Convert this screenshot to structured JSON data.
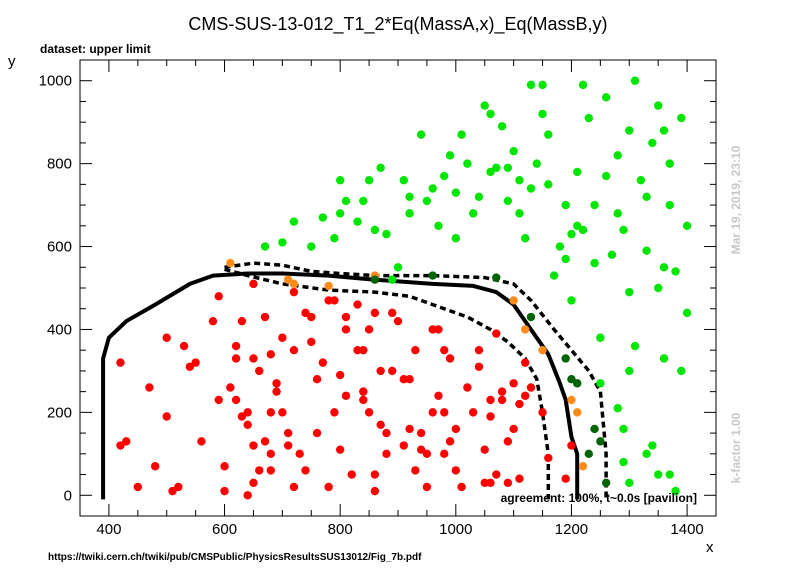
{
  "chart_data": {
    "type": "scatter",
    "title": "CMS-SUS-13-012_T1_2*Eq(MassA,x)_Eq(MassB,y)",
    "subtitle": "dataset: upper limit",
    "xlabel": "x",
    "ylabel": "y",
    "xlim": [
      350,
      1450
    ],
    "ylim": [
      -50,
      1050
    ],
    "xticks": [
      400,
      600,
      800,
      1000,
      1200,
      1400
    ],
    "yticks": [
      0,
      200,
      400,
      600,
      800,
      1000
    ],
    "colors": {
      "excluded": "#ff0000",
      "allowed": "#00e600",
      "borderline": "#ff8c1a",
      "darkgreen": "#006400",
      "text_grey": "#c8c8c8"
    },
    "series": [
      {
        "color_key": "excluded",
        "points": [
          [
            420,
            320
          ],
          [
            420,
            120
          ],
          [
            430,
            130
          ],
          [
            450,
            20
          ],
          [
            470,
            260
          ],
          [
            480,
            70
          ],
          [
            500,
            380
          ],
          [
            510,
            10
          ],
          [
            500,
            190
          ],
          [
            520,
            20
          ],
          [
            530,
            360
          ],
          [
            540,
            310
          ],
          [
            550,
            320
          ],
          [
            560,
            130
          ],
          [
            580,
            420
          ],
          [
            590,
            480
          ],
          [
            590,
            230
          ],
          [
            600,
            10
          ],
          [
            600,
            70
          ],
          [
            610,
            260
          ],
          [
            620,
            330
          ],
          [
            620,
            360
          ],
          [
            620,
            230
          ],
          [
            630,
            190
          ],
          [
            630,
            420
          ],
          [
            640,
            200
          ],
          [
            640,
            170
          ],
          [
            640,
            0
          ],
          [
            650,
            510
          ],
          [
            650,
            330
          ],
          [
            650,
            120
          ],
          [
            650,
            30
          ],
          [
            660,
            60
          ],
          [
            660,
            300
          ],
          [
            670,
            430
          ],
          [
            670,
            130
          ],
          [
            680,
            100
          ],
          [
            680,
            60
          ],
          [
            680,
            200
          ],
          [
            680,
            340
          ],
          [
            690,
            270
          ],
          [
            690,
            250
          ],
          [
            700,
            380
          ],
          [
            700,
            200
          ],
          [
            710,
            150
          ],
          [
            710,
            120
          ],
          [
            720,
            490
          ],
          [
            720,
            350
          ],
          [
            720,
            20
          ],
          [
            730,
            100
          ],
          [
            740,
            60
          ],
          [
            740,
            440
          ],
          [
            750,
            370
          ],
          [
            750,
            430
          ],
          [
            760,
            280
          ],
          [
            760,
            150
          ],
          [
            770,
            320
          ],
          [
            780,
            20
          ],
          [
            780,
            470
          ],
          [
            790,
            470
          ],
          [
            790,
            200
          ],
          [
            800,
            290
          ],
          [
            800,
            110
          ],
          [
            810,
            240
          ],
          [
            810,
            430
          ],
          [
            810,
            400
          ],
          [
            820,
            50
          ],
          [
            830,
            350
          ],
          [
            830,
            460
          ],
          [
            840,
            350
          ],
          [
            840,
            250
          ],
          [
            840,
            230
          ],
          [
            850,
            400
          ],
          [
            850,
            200
          ],
          [
            860,
            440
          ],
          [
            860,
            50
          ],
          [
            860,
            10
          ],
          [
            870,
            300
          ],
          [
            870,
            170
          ],
          [
            880,
            150
          ],
          [
            880,
            100
          ],
          [
            890,
            440
          ],
          [
            890,
            300
          ],
          [
            900,
            420
          ],
          [
            910,
            120
          ],
          [
            910,
            280
          ],
          [
            920,
            160
          ],
          [
            920,
            280
          ],
          [
            930,
            350
          ],
          [
            930,
            60
          ],
          [
            940,
            110
          ],
          [
            940,
            150
          ],
          [
            950,
            100
          ],
          [
            950,
            20
          ],
          [
            960,
            200
          ],
          [
            960,
            400
          ],
          [
            970,
            400
          ],
          [
            970,
            240
          ],
          [
            980,
            350
          ],
          [
            980,
            200
          ],
          [
            980,
            100
          ],
          [
            990,
            130
          ],
          [
            990,
            330
          ],
          [
            1000,
            160
          ],
          [
            1000,
            60
          ],
          [
            1010,
            20
          ],
          [
            1020,
            260
          ],
          [
            1030,
            200
          ],
          [
            1040,
            350
          ],
          [
            1040,
            310
          ],
          [
            1050,
            110
          ],
          [
            1050,
            30
          ],
          [
            1060,
            230
          ],
          [
            1060,
            190
          ],
          [
            1060,
            30
          ],
          [
            1070,
            50
          ],
          [
            1070,
            390
          ],
          [
            1080,
            250
          ],
          [
            1080,
            230
          ],
          [
            1090,
            30
          ],
          [
            1090,
            130
          ],
          [
            1100,
            270
          ],
          [
            1100,
            160
          ],
          [
            1110,
            220
          ],
          [
            1110,
            40
          ],
          [
            1120,
            320
          ],
          [
            1120,
            240
          ],
          [
            1130,
            260
          ],
          [
            1150,
            200
          ],
          [
            1160,
            90
          ],
          [
            1190,
            40
          ],
          [
            1200,
            120
          ]
        ],
        "color": "#ff0000"
      },
      {
        "color_key": "borderline",
        "points": [
          [
            610,
            560
          ],
          [
            710,
            520
          ],
          [
            720,
            510
          ],
          [
            780,
            505
          ],
          [
            860,
            530
          ],
          [
            1100,
            470
          ],
          [
            1120,
            400
          ],
          [
            1150,
            350
          ],
          [
            1200,
            230
          ],
          [
            1210,
            200
          ],
          [
            1220,
            70
          ]
        ],
        "color": "#ff8c1a"
      },
      {
        "color_key": "darkgreen",
        "points": [
          [
            860,
            520
          ],
          [
            960,
            530
          ],
          [
            1070,
            525
          ],
          [
            1130,
            430
          ],
          [
            1190,
            330
          ],
          [
            1200,
            280
          ],
          [
            1210,
            270
          ],
          [
            1230,
            100
          ],
          [
            1240,
            160
          ],
          [
            1250,
            130
          ],
          [
            1260,
            30
          ]
        ],
        "color": "#006400"
      },
      {
        "color_key": "allowed",
        "points": [
          [
            670,
            600
          ],
          [
            700,
            610
          ],
          [
            720,
            660
          ],
          [
            750,
            600
          ],
          [
            770,
            670
          ],
          [
            790,
            620
          ],
          [
            800,
            760
          ],
          [
            800,
            680
          ],
          [
            810,
            710
          ],
          [
            830,
            660
          ],
          [
            840,
            710
          ],
          [
            850,
            760
          ],
          [
            860,
            640
          ],
          [
            870,
            790
          ],
          [
            880,
            630
          ],
          [
            890,
            520
          ],
          [
            900,
            550
          ],
          [
            910,
            760
          ],
          [
            920,
            720
          ],
          [
            920,
            680
          ],
          [
            940,
            870
          ],
          [
            950,
            710
          ],
          [
            960,
            740
          ],
          [
            970,
            650
          ],
          [
            980,
            770
          ],
          [
            990,
            820
          ],
          [
            1000,
            730
          ],
          [
            1000,
            620
          ],
          [
            1010,
            870
          ],
          [
            1020,
            800
          ],
          [
            1030,
            680
          ],
          [
            1040,
            720
          ],
          [
            1050,
            940
          ],
          [
            1060,
            920
          ],
          [
            1060,
            780
          ],
          [
            1070,
            790
          ],
          [
            1080,
            890
          ],
          [
            1090,
            710
          ],
          [
            1090,
            790
          ],
          [
            1100,
            830
          ],
          [
            1110,
            760
          ],
          [
            1110,
            680
          ],
          [
            1120,
            620
          ],
          [
            1130,
            990
          ],
          [
            1130,
            740
          ],
          [
            1140,
            800
          ],
          [
            1150,
            920
          ],
          [
            1150,
            990
          ],
          [
            1160,
            870
          ],
          [
            1160,
            750
          ],
          [
            1170,
            530
          ],
          [
            1180,
            600
          ],
          [
            1190,
            700
          ],
          [
            1190,
            570
          ],
          [
            1200,
            630
          ],
          [
            1200,
            470
          ],
          [
            1210,
            780
          ],
          [
            1210,
            650
          ],
          [
            1220,
            990
          ],
          [
            1220,
            640
          ],
          [
            1230,
            910
          ],
          [
            1240,
            700
          ],
          [
            1240,
            560
          ],
          [
            1250,
            380
          ],
          [
            1250,
            270
          ],
          [
            1260,
            960
          ],
          [
            1260,
            770
          ],
          [
            1270,
            580
          ],
          [
            1280,
            680
          ],
          [
            1280,
            820
          ],
          [
            1290,
            640
          ],
          [
            1290,
            160
          ],
          [
            1300,
            880
          ],
          [
            1300,
            490
          ],
          [
            1310,
            1000
          ],
          [
            1310,
            360
          ],
          [
            1320,
            760
          ],
          [
            1330,
            720
          ],
          [
            1330,
            590
          ],
          [
            1340,
            850
          ],
          [
            1340,
            120
          ],
          [
            1350,
            940
          ],
          [
            1350,
            500
          ],
          [
            1360,
            880
          ],
          [
            1360,
            330
          ],
          [
            1370,
            800
          ],
          [
            1370,
            700
          ],
          [
            1380,
            540
          ],
          [
            1390,
            300
          ],
          [
            1390,
            910
          ],
          [
            1400,
            650
          ],
          [
            1400,
            440
          ],
          [
            1280,
            210
          ],
          [
            1300,
            300
          ],
          [
            1330,
            100
          ],
          [
            1350,
            50
          ],
          [
            1360,
            550
          ],
          [
            1370,
            50
          ],
          [
            1380,
            10
          ],
          [
            1290,
            80
          ],
          [
            1300,
            30
          ]
        ],
        "color": "#00e600"
      }
    ],
    "contours": [
      {
        "name": "expected-solid",
        "style": "solid",
        "points": [
          [
            390,
            -10
          ],
          [
            390,
            330
          ],
          [
            400,
            380
          ],
          [
            430,
            420
          ],
          [
            480,
            460
          ],
          [
            540,
            510
          ],
          [
            580,
            530
          ],
          [
            640,
            535
          ],
          [
            700,
            535
          ],
          [
            780,
            530
          ],
          [
            860,
            520
          ],
          [
            960,
            510
          ],
          [
            1030,
            505
          ],
          [
            1070,
            490
          ],
          [
            1100,
            460
          ],
          [
            1130,
            400
          ],
          [
            1160,
            340
          ],
          [
            1180,
            270
          ],
          [
            1190,
            230
          ],
          [
            1200,
            140
          ],
          [
            1210,
            100
          ],
          [
            1210,
            -10
          ]
        ]
      },
      {
        "name": "expected-dashed-upper",
        "style": "dashed",
        "points": [
          [
            600,
            550
          ],
          [
            650,
            560
          ],
          [
            700,
            555
          ],
          [
            750,
            540
          ],
          [
            800,
            535
          ],
          [
            860,
            530
          ],
          [
            960,
            530
          ],
          [
            1050,
            525
          ],
          [
            1100,
            510
          ],
          [
            1130,
            470
          ],
          [
            1170,
            400
          ],
          [
            1200,
            350
          ],
          [
            1230,
            300
          ],
          [
            1250,
            250
          ],
          [
            1260,
            100
          ],
          [
            1260,
            -10
          ]
        ]
      },
      {
        "name": "expected-dashed-lower",
        "style": "dashed",
        "points": [
          [
            600,
            545
          ],
          [
            640,
            530
          ],
          [
            700,
            510
          ],
          [
            780,
            495
          ],
          [
            860,
            490
          ],
          [
            920,
            480
          ],
          [
            960,
            460
          ],
          [
            1020,
            430
          ],
          [
            1060,
            400
          ],
          [
            1090,
            370
          ],
          [
            1120,
            330
          ],
          [
            1140,
            280
          ],
          [
            1150,
            200
          ],
          [
            1160,
            100
          ],
          [
            1160,
            -10
          ]
        ]
      }
    ],
    "annotations": {
      "date": "Mar 19, 2019, 23:10",
      "kfactor": "k-factor 1.00",
      "agreement": "agreement: 100%, t~0.0s [pavilion]",
      "url": "https://twiki.cern.ch/twiki/pub/CMSPublic/PhysicsResultsSUS13012/Fig_7b.pdf"
    }
  }
}
